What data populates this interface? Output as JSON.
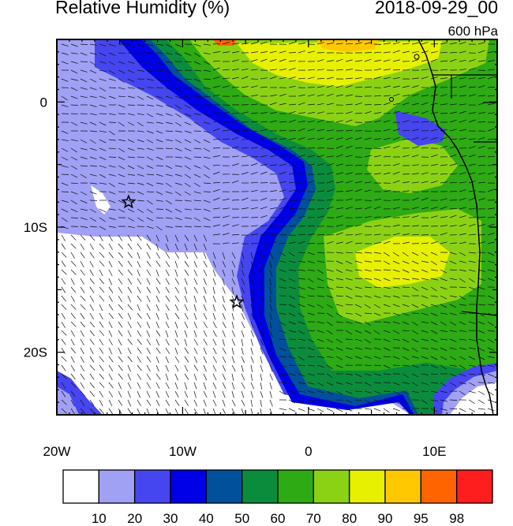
{
  "header": {
    "title": "Relative Humidity (%)",
    "datetime": "2018-09-29_00",
    "level": "600 hPa"
  },
  "map": {
    "lon_range": [
      -20,
      15
    ],
    "lat_range": [
      -25,
      5
    ],
    "lon_ticks": [
      {
        "value": -20,
        "label": "20W"
      },
      {
        "value": -10,
        "label": "10W"
      },
      {
        "value": 0,
        "label": "0"
      },
      {
        "value": 10,
        "label": "10E"
      }
    ],
    "lat_ticks": [
      {
        "value": 0,
        "label": "0"
      },
      {
        "value": -10,
        "label": "10S"
      },
      {
        "value": -20,
        "label": "20S"
      }
    ],
    "markers": [
      {
        "name": "star-marker-1",
        "lon": -14.3,
        "lat": -8.0
      },
      {
        "name": "star-marker-2",
        "lon": -5.7,
        "lat": -16.0
      }
    ]
  },
  "colorbar": {
    "levels": [
      "10",
      "20",
      "30",
      "40",
      "50",
      "60",
      "70",
      "80",
      "90",
      "95",
      "98"
    ],
    "colors": [
      "#ffffff",
      "#a0a0f5",
      "#4646f0",
      "#0000e6",
      "#00509b",
      "#0a8c3c",
      "#2daa14",
      "#8cd214",
      "#e6f000",
      "#ffc800",
      "#ff6400",
      "#ff1e1e"
    ]
  }
}
